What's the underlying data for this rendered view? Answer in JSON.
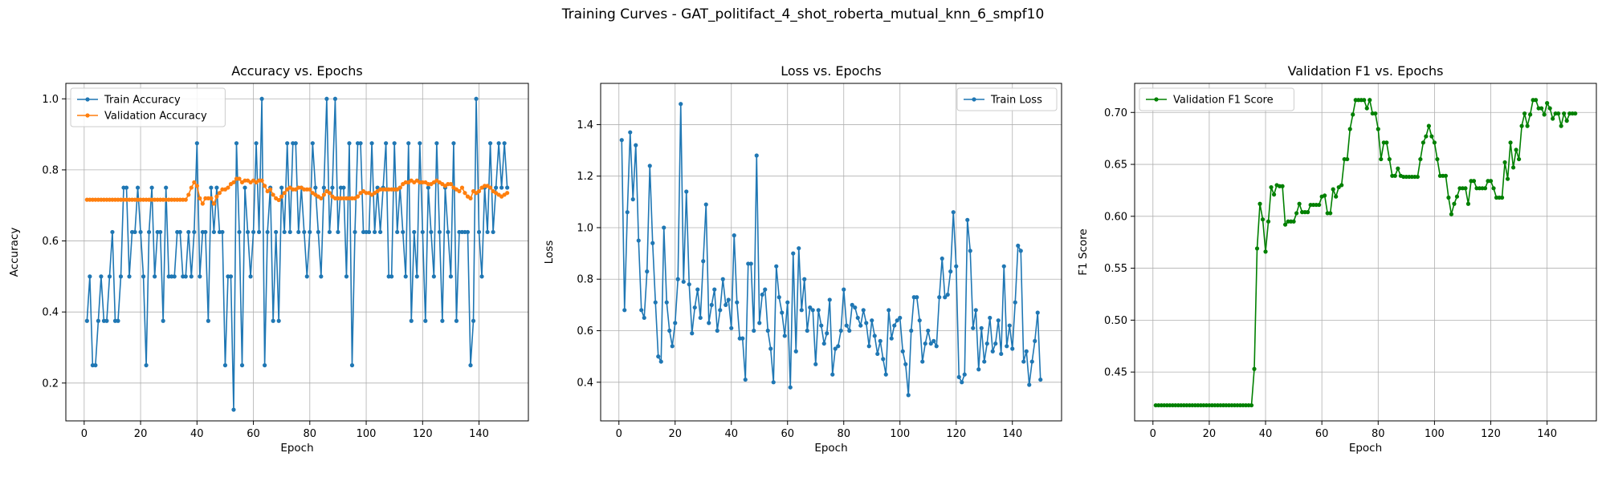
{
  "figure_title": "Training Curves - GAT_politifact_4_shot_roberta_mutual_knn_6_smpf10",
  "colors": {
    "blue": "#1f77b4",
    "orange": "#ff7f0e",
    "green": "#008000",
    "grid": "#b0b0b0"
  },
  "chart_data": [
    {
      "type": "line",
      "title": "Accuracy vs. Epochs",
      "xlabel": "Epoch",
      "ylabel": "Accuracy",
      "xlim": [
        -6.5,
        157.5
      ],
      "ylim": [
        0.0935,
        1.0435
      ],
      "xticks": [
        0,
        20,
        40,
        60,
        80,
        100,
        120,
        140
      ],
      "yticks": [
        0.2,
        0.4,
        0.6,
        0.8,
        1.0
      ],
      "ytick_labels": [
        "0.2",
        "0.4",
        "0.6",
        "0.8",
        "1.0"
      ],
      "grid": true,
      "legend_position": "upper left",
      "x": [
        1,
        2,
        3,
        4,
        5,
        6,
        7,
        8,
        9,
        10,
        11,
        12,
        13,
        14,
        15,
        16,
        17,
        18,
        19,
        20,
        21,
        22,
        23,
        24,
        25,
        26,
        27,
        28,
        29,
        30,
        31,
        32,
        33,
        34,
        35,
        36,
        37,
        38,
        39,
        40,
        41,
        42,
        43,
        44,
        45,
        46,
        47,
        48,
        49,
        50,
        51,
        52,
        53,
        54,
        55,
        56,
        57,
        58,
        59,
        60,
        61,
        62,
        63,
        64,
        65,
        66,
        67,
        68,
        69,
        70,
        71,
        72,
        73,
        74,
        75,
        76,
        77,
        78,
        79,
        80,
        81,
        82,
        83,
        84,
        85,
        86,
        87,
        88,
        89,
        90,
        91,
        92,
        93,
        94,
        95,
        96,
        97,
        98,
        99,
        100,
        101,
        102,
        103,
        104,
        105,
        106,
        107,
        108,
        109,
        110,
        111,
        112,
        113,
        114,
        115,
        116,
        117,
        118,
        119,
        120,
        121,
        122,
        123,
        124,
        125,
        126,
        127,
        128,
        129,
        130,
        131,
        132,
        133,
        134,
        135,
        136,
        137,
        138,
        139,
        140,
        141,
        142,
        143,
        144,
        145,
        146,
        147,
        148,
        149,
        150
      ],
      "series": [
        {
          "name": "Train Accuracy",
          "color": "#1f77b4",
          "values": [
            0.375,
            0.5,
            0.25,
            0.25,
            0.375,
            0.5,
            0.375,
            0.375,
            0.5,
            0.625,
            0.375,
            0.375,
            0.5,
            0.75,
            0.75,
            0.5,
            0.625,
            0.625,
            0.75,
            0.625,
            0.5,
            0.25,
            0.625,
            0.75,
            0.5,
            0.625,
            0.625,
            0.375,
            0.75,
            0.5,
            0.5,
            0.5,
            0.625,
            0.625,
            0.5,
            0.5,
            0.625,
            0.5,
            0.625,
            0.875,
            0.5,
            0.625,
            0.625,
            0.375,
            0.75,
            0.625,
            0.75,
            0.625,
            0.625,
            0.25,
            0.5,
            0.5,
            0.125,
            0.875,
            0.625,
            0.25,
            0.75,
            0.625,
            0.5,
            0.625,
            0.875,
            0.625,
            1.0,
            0.25,
            0.625,
            0.75,
            0.375,
            0.625,
            0.375,
            0.75,
            0.625,
            0.875,
            0.625,
            0.875,
            0.875,
            0.625,
            0.75,
            0.625,
            0.5,
            0.625,
            0.875,
            0.75,
            0.625,
            0.5,
            0.75,
            1.0,
            0.625,
            0.75,
            1.0,
            0.625,
            0.75,
            0.75,
            0.5,
            0.875,
            0.25,
            0.625,
            0.875,
            0.875,
            0.625,
            0.625,
            0.625,
            0.875,
            0.625,
            0.75,
            0.625,
            0.75,
            0.875,
            0.5,
            0.5,
            0.875,
            0.625,
            0.75,
            0.625,
            0.5,
            0.875,
            0.375,
            0.625,
            0.5,
            0.875,
            0.625,
            0.375,
            0.75,
            0.625,
            0.5,
            0.875,
            0.625,
            0.375,
            0.75,
            0.625,
            0.5,
            0.875,
            0.375,
            0.625,
            0.625,
            0.625,
            0.625,
            0.25,
            0.375,
            1.0,
            0.625,
            0.5,
            0.75,
            0.625,
            0.875,
            0.625,
            0.75,
            0.875,
            0.75,
            0.875,
            0.75
          ]
        },
        {
          "name": "Validation Accuracy",
          "color": "#ff7f0e",
          "values": [
            0.716,
            0.716,
            0.716,
            0.716,
            0.716,
            0.716,
            0.716,
            0.716,
            0.716,
            0.716,
            0.716,
            0.716,
            0.716,
            0.716,
            0.716,
            0.716,
            0.716,
            0.716,
            0.716,
            0.716,
            0.716,
            0.716,
            0.716,
            0.716,
            0.716,
            0.716,
            0.716,
            0.716,
            0.716,
            0.716,
            0.716,
            0.716,
            0.716,
            0.716,
            0.716,
            0.716,
            0.73,
            0.75,
            0.765,
            0.755,
            0.72,
            0.705,
            0.72,
            0.72,
            0.72,
            0.705,
            0.725,
            0.735,
            0.745,
            0.745,
            0.75,
            0.76,
            0.765,
            0.775,
            0.775,
            0.765,
            0.77,
            0.77,
            0.765,
            0.77,
            0.765,
            0.77,
            0.77,
            0.755,
            0.74,
            0.745,
            0.73,
            0.72,
            0.715,
            0.725,
            0.735,
            0.745,
            0.75,
            0.745,
            0.745,
            0.75,
            0.75,
            0.745,
            0.745,
            0.745,
            0.735,
            0.73,
            0.725,
            0.72,
            0.73,
            0.74,
            0.735,
            0.725,
            0.72,
            0.72,
            0.72,
            0.72,
            0.72,
            0.72,
            0.72,
            0.72,
            0.725,
            0.735,
            0.74,
            0.735,
            0.735,
            0.73,
            0.735,
            0.74,
            0.745,
            0.745,
            0.745,
            0.745,
            0.745,
            0.745,
            0.745,
            0.75,
            0.76,
            0.765,
            0.765,
            0.77,
            0.765,
            0.77,
            0.765,
            0.765,
            0.765,
            0.76,
            0.76,
            0.765,
            0.77,
            0.765,
            0.76,
            0.755,
            0.76,
            0.76,
            0.75,
            0.745,
            0.74,
            0.75,
            0.735,
            0.725,
            0.72,
            0.74,
            0.735,
            0.74,
            0.75,
            0.755,
            0.755,
            0.75,
            0.74,
            0.735,
            0.73,
            0.725,
            0.73,
            0.735
          ]
        }
      ]
    },
    {
      "type": "line",
      "title": "Loss vs. Epochs",
      "xlabel": "Epoch",
      "ylabel": "Loss",
      "xlim": [
        -6.5,
        157.5
      ],
      "ylim": [
        0.25,
        1.56
      ],
      "xticks": [
        0,
        20,
        40,
        60,
        80,
        100,
        120,
        140
      ],
      "yticks": [
        0.4,
        0.6,
        0.8,
        1.0,
        1.2,
        1.4
      ],
      "ytick_labels": [
        "0.4",
        "0.6",
        "0.8",
        "1.0",
        "1.2",
        "1.4"
      ],
      "grid": true,
      "legend_position": "upper right",
      "x": [
        1,
        2,
        3,
        4,
        5,
        6,
        7,
        8,
        9,
        10,
        11,
        12,
        13,
        14,
        15,
        16,
        17,
        18,
        19,
        20,
        21,
        22,
        23,
        24,
        25,
        26,
        27,
        28,
        29,
        30,
        31,
        32,
        33,
        34,
        35,
        36,
        37,
        38,
        39,
        40,
        41,
        42,
        43,
        44,
        45,
        46,
        47,
        48,
        49,
        50,
        51,
        52,
        53,
        54,
        55,
        56,
        57,
        58,
        59,
        60,
        61,
        62,
        63,
        64,
        65,
        66,
        67,
        68,
        69,
        70,
        71,
        72,
        73,
        74,
        75,
        76,
        77,
        78,
        79,
        80,
        81,
        82,
        83,
        84,
        85,
        86,
        87,
        88,
        89,
        90,
        91,
        92,
        93,
        94,
        95,
        96,
        97,
        98,
        99,
        100,
        101,
        102,
        103,
        104,
        105,
        106,
        107,
        108,
        109,
        110,
        111,
        112,
        113,
        114,
        115,
        116,
        117,
        118,
        119,
        120,
        121,
        122,
        123,
        124,
        125,
        126,
        127,
        128,
        129,
        130,
        131,
        132,
        133,
        134,
        135,
        136,
        137,
        138,
        139,
        140,
        141,
        142,
        143,
        144,
        145,
        146,
        147,
        148,
        149,
        150
      ],
      "series": [
        {
          "name": "Train Loss",
          "color": "#1f77b4",
          "values": [
            1.34,
            0.68,
            1.06,
            1.37,
            1.11,
            1.32,
            0.95,
            0.68,
            0.65,
            0.83,
            1.24,
            0.94,
            0.71,
            0.5,
            0.48,
            1.0,
            0.71,
            0.6,
            0.54,
            0.63,
            0.8,
            1.48,
            0.79,
            1.14,
            0.78,
            0.59,
            0.69,
            0.76,
            0.65,
            0.87,
            1.09,
            0.63,
            0.7,
            0.76,
            0.6,
            0.68,
            0.8,
            0.7,
            0.72,
            0.61,
            0.97,
            0.71,
            0.57,
            0.57,
            0.41,
            0.86,
            0.86,
            0.6,
            1.28,
            0.63,
            0.74,
            0.76,
            0.6,
            0.53,
            0.4,
            0.85,
            0.73,
            0.67,
            0.58,
            0.71,
            0.38,
            0.9,
            0.52,
            0.92,
            0.68,
            0.8,
            0.6,
            0.69,
            0.68,
            0.47,
            0.68,
            0.62,
            0.55,
            0.59,
            0.72,
            0.43,
            0.53,
            0.54,
            0.6,
            0.76,
            0.62,
            0.6,
            0.7,
            0.69,
            0.65,
            0.62,
            0.68,
            0.63,
            0.54,
            0.64,
            0.58,
            0.51,
            0.56,
            0.49,
            0.43,
            0.68,
            0.57,
            0.62,
            0.64,
            0.65,
            0.52,
            0.47,
            0.35,
            0.6,
            0.73,
            0.73,
            0.64,
            0.48,
            0.55,
            0.6,
            0.55,
            0.56,
            0.54,
            0.73,
            0.88,
            0.73,
            0.74,
            0.83,
            1.06,
            0.85,
            0.42,
            0.4,
            0.43,
            1.03,
            0.91,
            0.61,
            0.68,
            0.45,
            0.61,
            0.48,
            0.55,
            0.65,
            0.52,
            0.55,
            0.64,
            0.51,
            0.85,
            0.54,
            0.62,
            0.53,
            0.71,
            0.93,
            0.91,
            0.48,
            0.52,
            0.39,
            0.48,
            0.56,
            0.67,
            0.41
          ]
        }
      ]
    },
    {
      "type": "line",
      "title": "Validation F1 vs. Epochs",
      "xlabel": "Epoch",
      "ylabel": "F1 Score",
      "xlim": [
        -6.5,
        157.5
      ],
      "ylim": [
        0.403,
        0.728
      ],
      "xticks": [
        0,
        20,
        40,
        60,
        80,
        100,
        120,
        140
      ],
      "yticks": [
        0.45,
        0.5,
        0.55,
        0.6,
        0.65,
        0.7
      ],
      "ytick_labels": [
        "0.45",
        "0.50",
        "0.55",
        "0.60",
        "0.65",
        "0.70"
      ],
      "grid": true,
      "legend_position": "upper left",
      "x": [
        1,
        2,
        3,
        4,
        5,
        6,
        7,
        8,
        9,
        10,
        11,
        12,
        13,
        14,
        15,
        16,
        17,
        18,
        19,
        20,
        21,
        22,
        23,
        24,
        25,
        26,
        27,
        28,
        29,
        30,
        31,
        32,
        33,
        34,
        35,
        36,
        37,
        38,
        39,
        40,
        41,
        42,
        43,
        44,
        45,
        46,
        47,
        48,
        49,
        50,
        51,
        52,
        53,
        54,
        55,
        56,
        57,
        58,
        59,
        60,
        61,
        62,
        63,
        64,
        65,
        66,
        67,
        68,
        69,
        70,
        71,
        72,
        73,
        74,
        75,
        76,
        77,
        78,
        79,
        80,
        81,
        82,
        83,
        84,
        85,
        86,
        87,
        88,
        89,
        90,
        91,
        92,
        93,
        94,
        95,
        96,
        97,
        98,
        99,
        100,
        101,
        102,
        103,
        104,
        105,
        106,
        107,
        108,
        109,
        110,
        111,
        112,
        113,
        114,
        115,
        116,
        117,
        118,
        119,
        120,
        121,
        122,
        123,
        124,
        125,
        126,
        127,
        128,
        129,
        130,
        131,
        132,
        133,
        134,
        135,
        136,
        137,
        138,
        139,
        140,
        141,
        142,
        143,
        144,
        145,
        146,
        147,
        148,
        149,
        150
      ],
      "series": [
        {
          "name": "Validation F1 Score",
          "color": "#008000",
          "values": [
            0.418,
            0.418,
            0.418,
            0.418,
            0.418,
            0.418,
            0.418,
            0.418,
            0.418,
            0.418,
            0.418,
            0.418,
            0.418,
            0.418,
            0.418,
            0.418,
            0.418,
            0.418,
            0.418,
            0.418,
            0.418,
            0.418,
            0.418,
            0.418,
            0.418,
            0.418,
            0.418,
            0.418,
            0.418,
            0.418,
            0.418,
            0.418,
            0.418,
            0.418,
            0.418,
            0.453,
            0.569,
            0.612,
            0.597,
            0.566,
            0.595,
            0.628,
            0.621,
            0.63,
            0.629,
            0.629,
            0.592,
            0.595,
            0.595,
            0.595,
            0.603,
            0.612,
            0.604,
            0.604,
            0.604,
            0.611,
            0.611,
            0.611,
            0.611,
            0.619,
            0.62,
            0.603,
            0.603,
            0.626,
            0.619,
            0.628,
            0.63,
            0.655,
            0.655,
            0.684,
            0.698,
            0.712,
            0.712,
            0.712,
            0.712,
            0.704,
            0.712,
            0.699,
            0.699,
            0.684,
            0.655,
            0.671,
            0.671,
            0.655,
            0.639,
            0.639,
            0.646,
            0.639,
            0.638,
            0.638,
            0.638,
            0.638,
            0.638,
            0.638,
            0.655,
            0.671,
            0.677,
            0.687,
            0.677,
            0.671,
            0.655,
            0.639,
            0.639,
            0.639,
            0.618,
            0.602,
            0.612,
            0.619,
            0.627,
            0.627,
            0.627,
            0.612,
            0.634,
            0.634,
            0.627,
            0.627,
            0.627,
            0.627,
            0.634,
            0.634,
            0.627,
            0.618,
            0.618,
            0.618,
            0.652,
            0.636,
            0.671,
            0.647,
            0.664,
            0.655,
            0.687,
            0.699,
            0.687,
            0.698,
            0.712,
            0.712,
            0.704,
            0.704,
            0.698,
            0.709,
            0.704,
            0.694,
            0.699,
            0.699,
            0.687,
            0.699,
            0.692,
            0.699,
            0.699,
            0.699
          ]
        }
      ]
    }
  ]
}
